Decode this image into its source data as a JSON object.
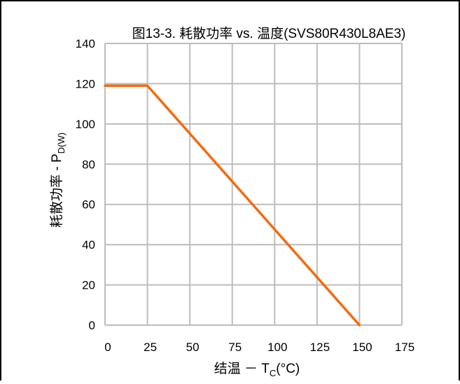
{
  "chart_data": {
    "type": "line",
    "title": "图13-3. 耗散功率 vs. 温度(SVS80R430L8AE3)",
    "xlabel": "结温 － T",
    "xlabel_sub": "C",
    "xlabel_unit": "(°C)",
    "ylabel": "耗散功率 - P",
    "ylabel_sub": "D(W)",
    "xlim": [
      0,
      175
    ],
    "ylim": [
      0,
      140
    ],
    "x_ticks": [
      0,
      25,
      50,
      75,
      100,
      125,
      150,
      175
    ],
    "y_ticks": [
      0,
      20,
      40,
      60,
      80,
      100,
      120,
      140
    ],
    "grid": true,
    "series": [
      {
        "color": "#f26b0f",
        "x": [
          0,
          25,
          150
        ],
        "y": [
          119,
          119,
          0
        ]
      }
    ]
  }
}
